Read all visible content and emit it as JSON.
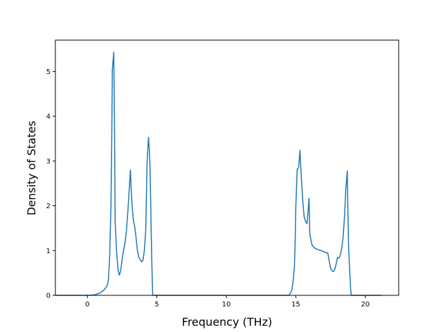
{
  "chart_data": {
    "type": "line",
    "title": "",
    "xlabel": "Frequency (THz)",
    "ylabel": "Density of States",
    "xlim": [
      -2.3,
      22.4
    ],
    "ylim": [
      0,
      5.7
    ],
    "xticks": [
      0,
      5,
      10,
      15,
      20
    ],
    "yticks": [
      0,
      1,
      2,
      3,
      4,
      5
    ],
    "grid": false,
    "legend": "none",
    "series": [
      {
        "color": "#1f77b4",
        "x": [
          -2.3,
          -1.0,
          0.0,
          0.5,
          0.9,
          1.2,
          1.4,
          1.5,
          1.6,
          1.7,
          1.75,
          1.8,
          1.9,
          1.95,
          2.0,
          2.1,
          2.2,
          2.3,
          2.4,
          2.5,
          2.6,
          2.7,
          2.8,
          2.9,
          3.0,
          3.1,
          3.15,
          3.2,
          3.25,
          3.3,
          3.4,
          3.5,
          3.6,
          3.7,
          3.8,
          3.9,
          4.0,
          4.1,
          4.2,
          4.3,
          4.4,
          4.45,
          4.5,
          4.55,
          4.6,
          4.65,
          4.7,
          4.8,
          4.9,
          5.0,
          10.0,
          14.0,
          14.5,
          14.7,
          14.8,
          14.9,
          14.95,
          15.0,
          15.1,
          15.2,
          15.25,
          15.3,
          15.4,
          15.5,
          15.6,
          15.7,
          15.8,
          15.9,
          15.95,
          16.0,
          16.1,
          16.2,
          16.4,
          16.6,
          16.8,
          17.0,
          17.1,
          17.3,
          17.5,
          17.6,
          17.7,
          17.8,
          17.9,
          18.0,
          18.1,
          18.2,
          18.3,
          18.4,
          18.5,
          18.6,
          18.7,
          18.75,
          18.8,
          18.85,
          18.9,
          18.95,
          19.0,
          19.1,
          19.2,
          19.3,
          19.4,
          19.5,
          21.2
        ],
        "y": [
          0.0,
          0.0,
          0.0,
          0.01,
          0.05,
          0.12,
          0.2,
          0.3,
          0.8,
          2.0,
          3.3,
          5.05,
          5.43,
          4.0,
          1.65,
          1.0,
          0.6,
          0.45,
          0.55,
          0.8,
          1.0,
          1.15,
          1.4,
          1.8,
          2.3,
          2.8,
          2.4,
          2.1,
          1.9,
          1.7,
          1.55,
          1.3,
          1.0,
          0.85,
          0.8,
          0.75,
          0.78,
          1.0,
          1.45,
          3.0,
          3.53,
          3.3,
          2.95,
          2.2,
          1.3,
          0.6,
          0.0,
          0.0,
          0.0,
          0.0,
          0.0,
          0.0,
          0.0,
          0.1,
          0.3,
          0.65,
          1.2,
          2.0,
          2.82,
          2.85,
          3.05,
          3.24,
          2.6,
          2.1,
          1.75,
          1.65,
          1.6,
          1.95,
          2.17,
          1.4,
          1.2,
          1.1,
          1.05,
          1.02,
          1.0,
          0.98,
          0.96,
          0.94,
          0.6,
          0.55,
          0.53,
          0.58,
          0.7,
          0.85,
          0.83,
          0.9,
          1.05,
          1.3,
          1.75,
          2.4,
          2.78,
          1.8,
          1.05,
          0.7,
          0.4,
          0.1,
          0.0,
          0.0,
          0.0,
          0.0,
          0.0,
          0.0,
          0.0
        ]
      }
    ]
  }
}
